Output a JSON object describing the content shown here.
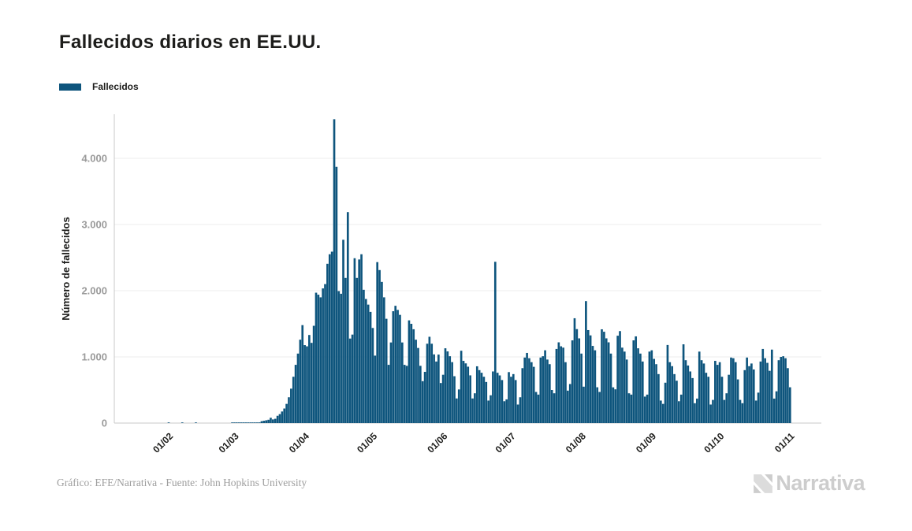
{
  "header": {
    "title": "Fallecidos diarios en EE.UU."
  },
  "legend": {
    "items": [
      {
        "label": "Fallecidos",
        "color": "#0e557d"
      }
    ]
  },
  "footer": {
    "credit": "Gráfico: EFE/Narrativa - Fuente: John Hopkins University"
  },
  "logo": {
    "text": "Narrativa"
  },
  "colors": {
    "bar": "#0e557d",
    "grid": "#ececec",
    "axis": "#c9c9c9",
    "y_tick_label": "#9b9b9b",
    "x_tick_label": "#1d1d1b",
    "axis_title": "#1d1d1b"
  },
  "chart_data": {
    "type": "bar",
    "title": "Fallecidos diarios en EE.UU.",
    "series_name": "Fallecidos",
    "xlabel": "",
    "ylabel": "Número de fallecidos",
    "ylim": [
      0,
      4600
    ],
    "grid": "horizontal",
    "legend_position": "top-left",
    "frequency": "daily",
    "start_date": "22/01/2020",
    "y_ticks": [
      {
        "label": "0",
        "value": 0
      },
      {
        "label": "1.000",
        "value": 1000
      },
      {
        "label": "2.000",
        "value": 2000
      },
      {
        "label": "3.000",
        "value": 3000
      },
      {
        "label": "4.000",
        "value": 4000
      }
    ],
    "x_ticks": [
      {
        "label": "01/02",
        "day_index": 10
      },
      {
        "label": "01/03",
        "day_index": 39
      },
      {
        "label": "01/04",
        "day_index": 70
      },
      {
        "label": "01/05",
        "day_index": 100
      },
      {
        "label": "01/06",
        "day_index": 131
      },
      {
        "label": "01/07",
        "day_index": 161
      },
      {
        "label": "01/08",
        "day_index": 192
      },
      {
        "label": "01/09",
        "day_index": 223
      },
      {
        "label": "01/10",
        "day_index": 253
      },
      {
        "label": "01/11",
        "day_index": 284
      }
    ],
    "values": [
      0,
      0,
      0,
      0,
      0,
      0,
      0,
      0,
      0,
      0,
      1,
      0,
      0,
      0,
      0,
      0,
      1,
      0,
      0,
      0,
      0,
      0,
      1,
      0,
      0,
      0,
      0,
      0,
      0,
      0,
      0,
      0,
      0,
      0,
      0,
      0,
      0,
      0,
      1,
      1,
      2,
      3,
      2,
      3,
      3,
      4,
      5,
      5,
      6,
      7,
      10,
      28,
      35,
      42,
      50,
      80,
      55,
      65,
      110,
      135,
      175,
      220,
      290,
      390,
      520,
      700,
      880,
      1050,
      1260,
      1480,
      1178,
      1160,
      1331,
      1212,
      1470,
      1970,
      1940,
      1900,
      2035,
      2100,
      2407,
      2551,
      2590,
      4591,
      3872,
      1994,
      1954,
      2770,
      2193,
      3188,
      1277,
      1337,
      2491,
      2193,
      2472,
      2551,
      2014,
      1875,
      1790,
      1680,
      1437,
      1019,
      2432,
      2312,
      2133,
      1900,
      1576,
      880,
      1218,
      1690,
      1772,
      1710,
      1635,
      1218,
      880,
      865,
      1552,
      1500,
      1418,
      1260,
      1135,
      865,
      633,
      774,
      1199,
      1304,
      1199,
      1038,
      930,
      1035,
      605,
      730,
      1130,
      1083,
      1010,
      921,
      708,
      372,
      508,
      1093,
      940,
      902,
      852,
      721,
      372,
      450,
      858,
      800,
      760,
      700,
      621,
      340,
      420,
      780,
      2437,
      760,
      720,
      650,
      330,
      358,
      770,
      700,
      740,
      650,
      280,
      390,
      830,
      990,
      1060,
      980,
      920,
      850,
      470,
      430,
      990,
      1010,
      1100,
      960,
      890,
      500,
      450,
      1120,
      1220,
      1160,
      1140,
      920,
      490,
      590,
      1250,
      1584,
      1420,
      1280,
      1050,
      550,
      1843,
      1405,
      1325,
      1166,
      1100,
      541,
      470,
      1417,
      1380,
      1280,
      1220,
      1050,
      540,
      510,
      1320,
      1390,
      1140,
      1080,
      960,
      450,
      430,
      1250,
      1310,
      1130,
      1050,
      930,
      400,
      430,
      1080,
      1100,
      970,
      890,
      740,
      340,
      290,
      610,
      1180,
      920,
      860,
      740,
      640,
      330,
      430,
      1190,
      950,
      870,
      780,
      680,
      300,
      370,
      1080,
      950,
      900,
      760,
      700,
      280,
      350,
      940,
      880,
      920,
      700,
      350,
      450,
      730,
      990,
      980,
      920,
      660,
      350,
      300,
      800,
      990,
      860,
      900,
      810,
      340,
      460,
      930,
      1120,
      980,
      910,
      790,
      1110,
      370,
      480,
      950,
      1000,
      1010,
      980,
      830,
      541
    ]
  }
}
